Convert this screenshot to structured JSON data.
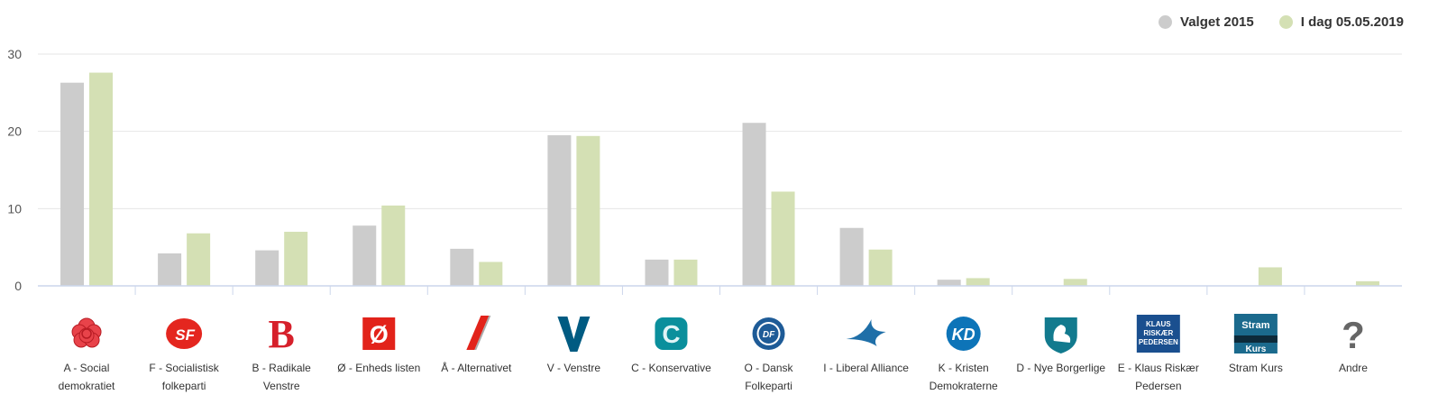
{
  "legend": {
    "series1": "Valget 2015",
    "series2": "I dag 05.05.2019"
  },
  "colors": {
    "series1": "#cccccc",
    "series2": "#d4e0b4",
    "grid": "#e6e6e6",
    "axis": "#ccd6eb"
  },
  "chart_data": {
    "type": "bar",
    "title": "",
    "xlabel": "",
    "ylabel": "",
    "ylim": [
      0,
      30
    ],
    "yticks": [
      0,
      10,
      20,
      30
    ],
    "grid": true,
    "legend_position": "top-right",
    "categories": [
      [
        "A - Social",
        "demokratiet"
      ],
      [
        "F - Socialistisk",
        "folkeparti"
      ],
      [
        "B - Radikale",
        "Venstre"
      ],
      [
        "Ø - Enheds listen"
      ],
      [
        "Å - Alternativet"
      ],
      [
        "V - Venstre"
      ],
      [
        "C - Konservative"
      ],
      [
        "O - Dansk",
        "Folkeparti"
      ],
      [
        "I - Liberal Alliance"
      ],
      [
        "K - Kristen",
        "Demokraterne"
      ],
      [
        "D - Nye Borgerlige"
      ],
      [
        "E - Klaus Riskær",
        "Pedersen"
      ],
      [
        "Stram Kurs"
      ],
      [
        "Andre"
      ]
    ],
    "icons": [
      "rose-logo-icon",
      "sf-logo-icon",
      "b-logo-icon",
      "oe-logo-icon",
      "aa-slash-logo-icon",
      "v-logo-icon",
      "c-logo-icon",
      "df-logo-icon",
      "swallow-logo-icon",
      "kd-logo-icon",
      "swan-logo-icon",
      "klaus-riskaer-logo-icon",
      "stram-kurs-logo-icon",
      "question-mark-icon"
    ],
    "icon_text": {
      "sf": "SF",
      "b": "B",
      "oe": "Ø",
      "c": "C",
      "df": "DF",
      "kd": "KD",
      "klaus": [
        "KLAUS",
        "RISKÆR",
        "PEDERSEN"
      ],
      "stram": [
        "Stram",
        "Kurs"
      ],
      "question": "?"
    },
    "series": [
      {
        "name": "Valget 2015",
        "values": [
          26.3,
          4.2,
          4.6,
          7.8,
          4.8,
          19.5,
          3.4,
          21.1,
          7.5,
          0.8,
          0,
          0,
          0,
          0
        ]
      },
      {
        "name": "I dag 05.05.2019",
        "values": [
          27.6,
          6.8,
          7.0,
          10.4,
          3.1,
          19.4,
          3.4,
          12.2,
          4.7,
          1.0,
          0.9,
          0,
          2.4,
          0.6
        ]
      }
    ]
  }
}
